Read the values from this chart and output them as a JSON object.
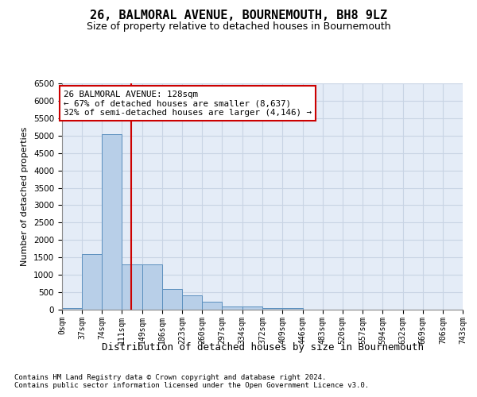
{
  "title": "26, BALMORAL AVENUE, BOURNEMOUTH, BH8 9LZ",
  "subtitle": "Size of property relative to detached houses in Bournemouth",
  "xlabel": "Distribution of detached houses by size in Bournemouth",
  "ylabel": "Number of detached properties",
  "bar_edges": [
    0,
    37,
    74,
    111,
    149,
    186,
    223,
    260,
    297,
    334,
    372,
    409,
    446,
    483,
    520,
    557,
    594,
    632,
    669,
    706,
    743
  ],
  "bar_heights": [
    50,
    1600,
    5050,
    1300,
    1300,
    600,
    400,
    230,
    100,
    100,
    50,
    50,
    0,
    0,
    0,
    0,
    0,
    0,
    0,
    0
  ],
  "bar_color": "#b8cfe8",
  "bar_edge_color": "#5b8fbe",
  "vline_x": 128,
  "vline_color": "#cc0000",
  "annotation_text": "26 BALMORAL AVENUE: 128sqm\n← 67% of detached houses are smaller (8,637)\n32% of semi-detached houses are larger (4,146) →",
  "annotation_box_color": "#cc0000",
  "ylim": [
    0,
    6500
  ],
  "yticks": [
    0,
    500,
    1000,
    1500,
    2000,
    2500,
    3000,
    3500,
    4000,
    4500,
    5000,
    5500,
    6000,
    6500
  ],
  "tick_labels": [
    "0sqm",
    "37sqm",
    "74sqm",
    "111sqm",
    "149sqm",
    "186sqm",
    "223sqm",
    "260sqm",
    "297sqm",
    "334sqm",
    "372sqm",
    "409sqm",
    "446sqm",
    "483sqm",
    "520sqm",
    "557sqm",
    "594sqm",
    "632sqm",
    "669sqm",
    "706sqm",
    "743sqm"
  ],
  "footer_line1": "Contains HM Land Registry data © Crown copyright and database right 2024.",
  "footer_line2": "Contains public sector information licensed under the Open Government Licence v3.0.",
  "grid_color": "#c8d4e4",
  "background_color": "#e4ecf7"
}
